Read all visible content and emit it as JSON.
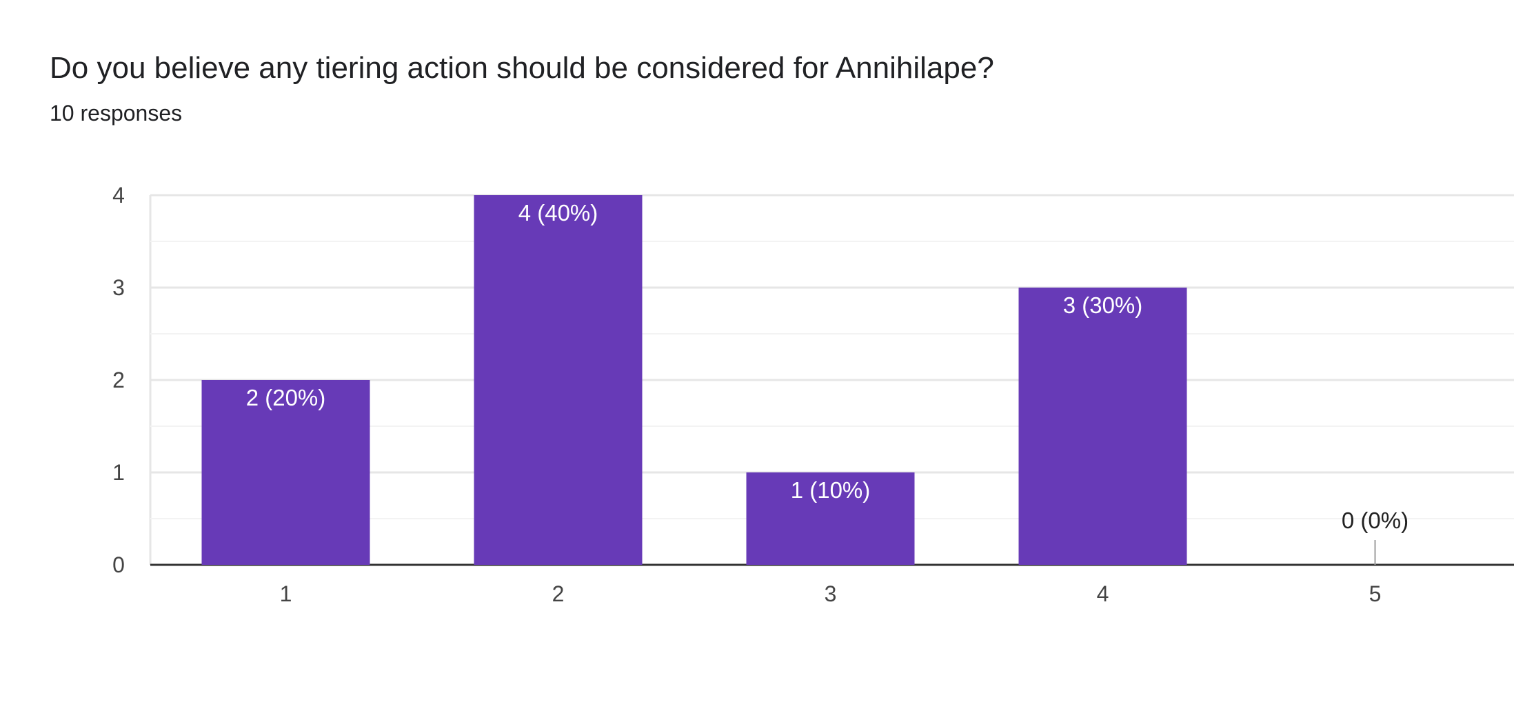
{
  "header": {
    "title": "Do you believe any tiering action should be considered for Annihilape?",
    "responses": "10 responses"
  },
  "colors": {
    "bar": "#673ab7",
    "label_inside": "#ffffff",
    "label_outside": "#222222",
    "grid": "#e6e6e6",
    "minor_grid": "#f3f3f3",
    "axis": "#333333"
  },
  "chart_data": {
    "type": "bar",
    "categories": [
      "1",
      "2",
      "3",
      "4",
      "5"
    ],
    "values": [
      2,
      4,
      1,
      3,
      0
    ],
    "data_labels": [
      "2 (20%)",
      "4 (40%)",
      "1 (10%)",
      "3 (30%)",
      "0 (0%)"
    ],
    "y_ticks": [
      "0",
      "1",
      "2",
      "3",
      "4"
    ],
    "ylim": [
      0,
      4
    ],
    "grid": true,
    "legend": "none"
  }
}
